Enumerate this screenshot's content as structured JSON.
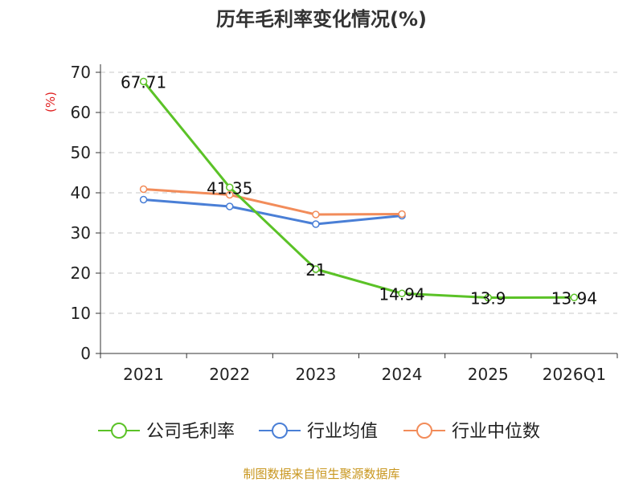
{
  "title": "历年毛利率变化情况(%)",
  "source": "制图数据来自恒生聚源数据库",
  "chart_data": {
    "type": "line",
    "title": "历年毛利率变化情况(%)",
    "xlabel": "",
    "ylabel": "(%)",
    "categories": [
      "2021",
      "2022",
      "2023",
      "2024",
      "2025",
      "2026Q1"
    ],
    "ylim": [
      0,
      70
    ],
    "yticks": [
      0,
      10,
      20,
      30,
      40,
      50,
      60,
      70
    ],
    "grid": true,
    "legend_position": "bottom",
    "series": [
      {
        "name": "公司毛利率",
        "color": "#5bc227",
        "values": [
          67.71,
          41.35,
          21,
          14.94,
          13.9,
          13.94
        ],
        "labels": [
          "67.71",
          "41.35",
          "21",
          "14.94",
          "13.9",
          "13.94"
        ]
      },
      {
        "name": "行业均值",
        "color": "#4a7fd6",
        "values": [
          38.3,
          36.6,
          32.2,
          34.3,
          null,
          null
        ]
      },
      {
        "name": "行业中位数",
        "color": "#f28c5a",
        "values": [
          40.9,
          39.5,
          34.6,
          34.7,
          null,
          null
        ]
      }
    ]
  }
}
